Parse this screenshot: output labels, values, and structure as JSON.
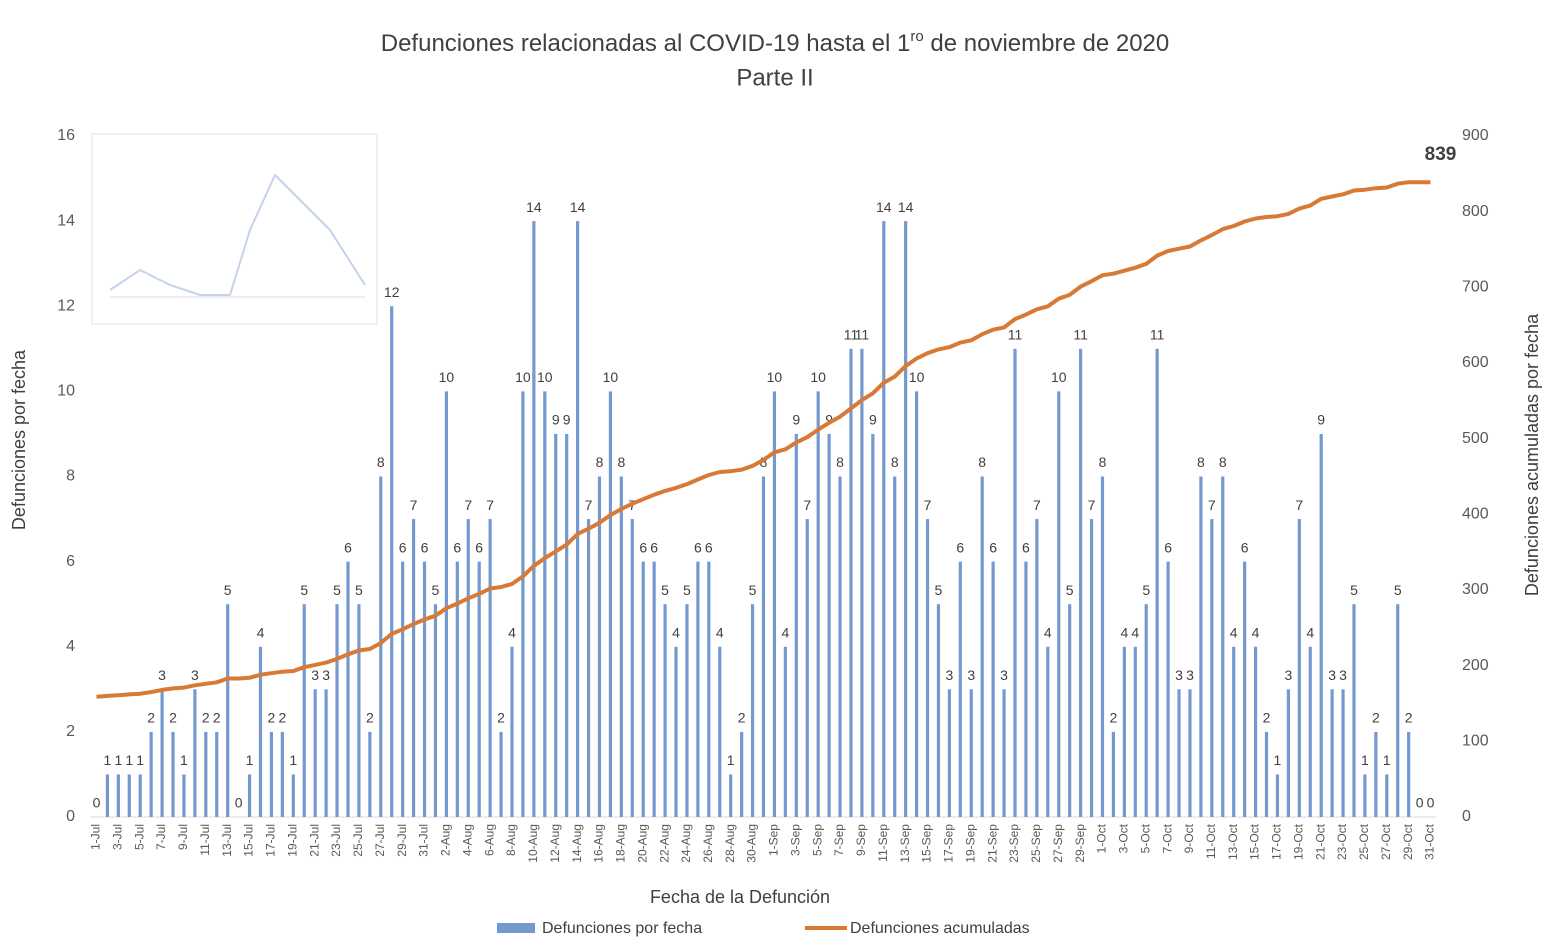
{
  "chart_data": {
    "type": "combo",
    "title": [
      "Defunciones relacionadas al COVID-19 hasta el 1",
      "ro",
      " de noviembre de 2020"
    ],
    "subtitle": "Parte II",
    "x_label": "Fecha de la Defunción",
    "y_label": "Defunciones por fecha",
    "y2_label": "Defunciones acumuladas por fecha",
    "categories": [
      "1-Jul",
      null,
      "3-Jul",
      null,
      "5-Jul",
      null,
      "7-Jul",
      null,
      "9-Jul",
      null,
      "11-Jul",
      null,
      "13-Jul",
      null,
      "15-Jul",
      null,
      "17-Jul",
      null,
      "19-Jul",
      null,
      "21-Jul",
      null,
      "23-Jul",
      null,
      "25-Jul",
      null,
      "27-Jul",
      null,
      "29-Jul",
      null,
      "31-Jul",
      null,
      "2-Aug",
      null,
      "4-Aug",
      null,
      "6-Aug",
      null,
      "8-Aug",
      null,
      "10-Aug",
      null,
      "12-Aug",
      null,
      "14-Aug",
      null,
      "16-Aug",
      null,
      "18-Aug",
      null,
      "20-Aug",
      null,
      "22-Aug",
      null,
      "24-Aug",
      null,
      "26-Aug",
      null,
      "28-Aug",
      null,
      "30-Aug",
      null,
      "1-Sep",
      null,
      "3-Sep",
      null,
      "5-Sep",
      null,
      "7-Sep",
      null,
      "9-Sep",
      null,
      "11-Sep",
      null,
      "13-Sep",
      null,
      "15-Sep",
      null,
      "17-Sep",
      null,
      "19-Sep",
      null,
      "21-Sep",
      null,
      "23-Sep",
      null,
      "25-Sep",
      null,
      "27-Sep",
      null,
      "29-Sep",
      null,
      "1-Oct",
      null,
      "3-Oct",
      null,
      "5-Oct",
      null,
      "7-Oct",
      null,
      "9-Oct",
      null,
      "11-Oct",
      null,
      "13-Oct",
      null,
      "15-Oct",
      null,
      "17-Oct",
      null,
      "19-Oct",
      null,
      "21-Oct",
      null,
      "23-Oct",
      null,
      "25-Oct",
      null,
      "27-Oct",
      null,
      "29-Oct",
      null,
      "31-Oct"
    ],
    "series": [
      {
        "name": "Defunciones por fecha",
        "type": "bar",
        "color": "#7399cf",
        "values": [
          0,
          1,
          1,
          1,
          1,
          2,
          3,
          2,
          1,
          3,
          2,
          2,
          5,
          0,
          1,
          4,
          2,
          2,
          1,
          5,
          3,
          3,
          5,
          6,
          5,
          2,
          8,
          12,
          6,
          7,
          6,
          5,
          10,
          6,
          7,
          6,
          7,
          2,
          4,
          10,
          14,
          10,
          9,
          9,
          14,
          7,
          8,
          10,
          8,
          7,
          6,
          6,
          5,
          4,
          5,
          6,
          6,
          4,
          1,
          2,
          5,
          8,
          10,
          4,
          9,
          7,
          10,
          9,
          8,
          11,
          11,
          9,
          14,
          8,
          14,
          10,
          7,
          5,
          3,
          6,
          3,
          8,
          6,
          3,
          11,
          6,
          7,
          4,
          10,
          5,
          11,
          7,
          8,
          2,
          4,
          4,
          5,
          11,
          6,
          3,
          3,
          8,
          7,
          8,
          4,
          6,
          4,
          2,
          1,
          3,
          7,
          4,
          9,
          3,
          3,
          5,
          1,
          2,
          1,
          5,
          2,
          0,
          0
        ]
      },
      {
        "name": "Defunciones acumuladas",
        "type": "line",
        "axis": "y2",
        "color": "#d87a35",
        "label_last": true,
        "values": [
          159,
          160,
          161,
          162,
          163,
          165,
          168,
          170,
          171,
          174,
          176,
          178,
          183,
          183,
          184,
          188,
          190,
          192,
          193,
          198,
          201,
          204,
          209,
          215,
          220,
          222,
          230,
          242,
          248,
          255,
          261,
          266,
          276,
          282,
          289,
          295,
          302,
          304,
          308,
          318,
          332,
          342,
          351,
          360,
          374,
          381,
          389,
          399,
          407,
          414,
          420,
          426,
          431,
          435,
          440,
          446,
          452,
          456,
          457,
          459,
          464,
          472,
          482,
          486,
          495,
          502,
          512,
          521,
          529,
          540,
          551,
          560,
          574,
          582,
          596,
          606,
          613,
          618,
          621,
          627,
          630,
          638,
          644,
          647,
          658,
          664,
          671,
          675,
          685,
          690,
          701,
          708,
          716,
          718,
          722,
          726,
          731,
          742,
          748,
          751,
          754,
          762,
          769,
          777,
          781,
          787,
          791,
          793,
          794,
          797,
          804,
          808,
          817,
          820,
          823,
          828,
          829,
          831,
          832,
          837,
          839,
          839,
          839
        ]
      }
    ],
    "ylim": [
      0,
      16
    ],
    "yticks": [
      0,
      2,
      4,
      6,
      8,
      10,
      12,
      14,
      16
    ],
    "y2lim": [
      0,
      900
    ],
    "y2ticks": [
      0,
      100,
      200,
      300,
      400,
      500,
      600,
      700,
      800,
      900
    ],
    "data_labels": true
  }
}
